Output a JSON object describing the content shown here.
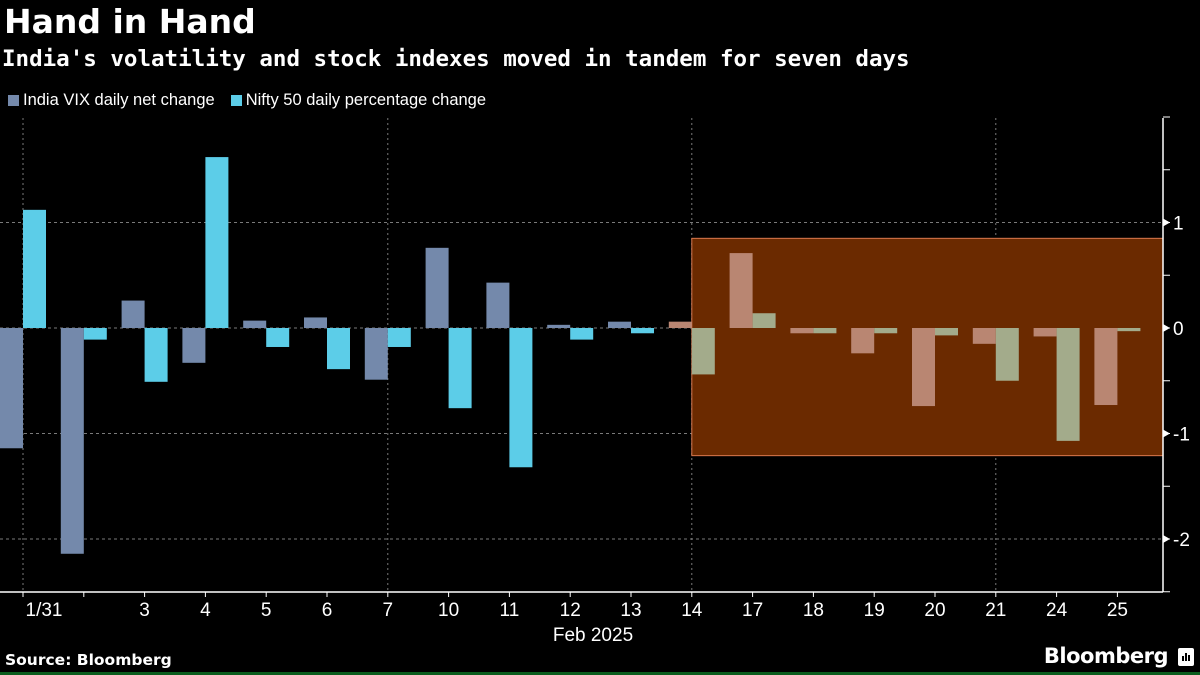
{
  "title": "Hand in Hand",
  "subtitle": "India's volatility and stock indexes moved in tandem for seven days",
  "source": "Source: Bloomberg",
  "brand": "Bloomberg",
  "brand_icon": "bloomberg-chart-icon",
  "colors": {
    "vix": "#7489ab",
    "nifty": "#5ccde8",
    "highlight_fill": "#6b2a00",
    "highlight_border": "#d9794f",
    "vix_in_highlight": "#b98672",
    "nifty_in_highlight": "#a3ab8b",
    "grid": "#7a7a7a"
  },
  "chart_data": {
    "type": "bar",
    "title": "Hand in Hand",
    "subtitle": "India's volatility and stock indexes moved in tandem for seven days",
    "xlabel": "Feb 2025",
    "ylabel": "",
    "categories": [
      "1/31",
      "",
      "3",
      "4",
      "5",
      "6",
      "7",
      "10",
      "11",
      "12",
      "13",
      "14",
      "17",
      "18",
      "19",
      "20",
      "21",
      "24",
      "25"
    ],
    "series": [
      {
        "name": "India VIX daily net change",
        "values": [
          -1.14,
          -2.14,
          0.26,
          -0.33,
          0.07,
          0.1,
          -0.49,
          0.76,
          0.43,
          0.03,
          0.06,
          0.06,
          0.71,
          -0.05,
          -0.24,
          -0.74,
          -0.15,
          -0.08,
          -0.73
        ]
      },
      {
        "name": "Nifty 50 daily percentage change",
        "values": [
          1.12,
          -0.11,
          -0.51,
          1.62,
          -0.18,
          -0.39,
          -0.18,
          -0.76,
          -1.32,
          -0.11,
          -0.05,
          -0.44,
          0.14,
          -0.05,
          -0.05,
          -0.07,
          -0.5,
          -1.07,
          -0.03
        ]
      }
    ],
    "ylim": [
      -2.5,
      2.0
    ],
    "yticks": [
      1,
      0,
      -1,
      -2
    ],
    "ytick_labels": [
      "1",
      "0",
      "-1",
      "-2"
    ],
    "grid": true,
    "legend": "top-left",
    "y_axis_side": "right",
    "highlight": {
      "from_category": "14",
      "to_category": "25",
      "y_range": [
        -1.21,
        0.85
      ]
    },
    "vertical_gridlines_at": [
      "1/31",
      "7",
      "14",
      "21"
    ]
  }
}
